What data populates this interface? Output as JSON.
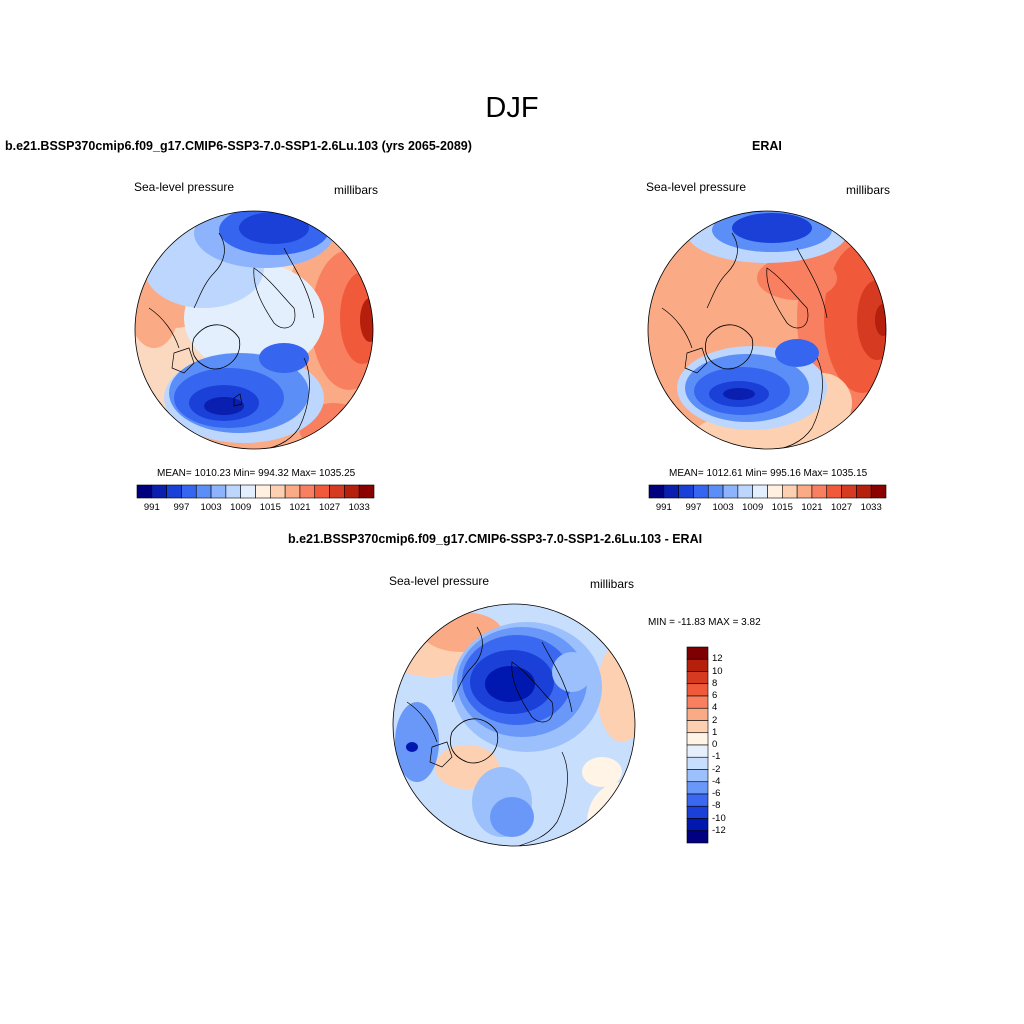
{
  "title": "DJF",
  "colors": {
    "abs": [
      "#00007f",
      "#0a1fb0",
      "#1a40d8",
      "#3666f0",
      "#5c8ef7",
      "#8cb3fb",
      "#bcd6fd",
      "#e4effd",
      "#fff0e0",
      "#fcd0b0",
      "#fbaa86",
      "#f88060",
      "#f05a3a",
      "#d63a20",
      "#b51f0c",
      "#8b0000"
    ],
    "diff": [
      "#000080",
      "#0018b0",
      "#1a40d8",
      "#3a68f0",
      "#6a98f8",
      "#9cc0fc",
      "#c8defd",
      "#e6f0fd",
      "#fff4e6",
      "#fcd0b0",
      "#fbaa86",
      "#f88060",
      "#f05a3a",
      "#d63a20",
      "#b51f0c",
      "#7f0000"
    ],
    "land_outline": "#000000"
  },
  "panels": {
    "model": {
      "title": "b.e21.BSSP370cmip6.f09_g17.CMIP6-SSP3-7.0-SSP1-2.6Lu.103 (yrs 2065-2089)",
      "left_label": "Sea-level pressure",
      "right_label": "millibars",
      "stats": "MEAN= 1010.23  Min= 994.32  Max= 1035.25",
      "ticks": [
        "991",
        "997",
        "1003",
        "1009",
        "1015",
        "1021",
        "1027",
        "1033"
      ]
    },
    "obs": {
      "title": "ERAI",
      "left_label": "Sea-level pressure",
      "right_label": "millibars",
      "stats": "MEAN= 1012.61  Min= 995.16  Max= 1035.15",
      "ticks": [
        "991",
        "997",
        "1003",
        "1009",
        "1015",
        "1021",
        "1027",
        "1033"
      ]
    },
    "diff": {
      "title": "b.e21.BSSP370cmip6.f09_g17.CMIP6-SSP3-7.0-SSP1-2.6Lu.103 - ERAI",
      "left_label": "Sea-level pressure",
      "right_label": "millibars",
      "stats": "MIN = -11.83 MAX =   3.82",
      "ticks": [
        "12",
        "10",
        "8",
        "6",
        "4",
        "2",
        "1",
        "0",
        "-1",
        "-2",
        "-4",
        "-6",
        "-8",
        "-10",
        "-12"
      ]
    }
  },
  "map_data": {
    "projection": "north polar stereographic",
    "variable": "Sea-level pressure",
    "units": "millibars",
    "season": "DJF",
    "model": {
      "mean": 1010.23,
      "min": 994.32,
      "max": 1035.25
    },
    "obs": {
      "mean": 1012.61,
      "min": 995.16,
      "max": 1035.15
    },
    "diff": {
      "min": -11.83,
      "max": 3.82
    }
  }
}
